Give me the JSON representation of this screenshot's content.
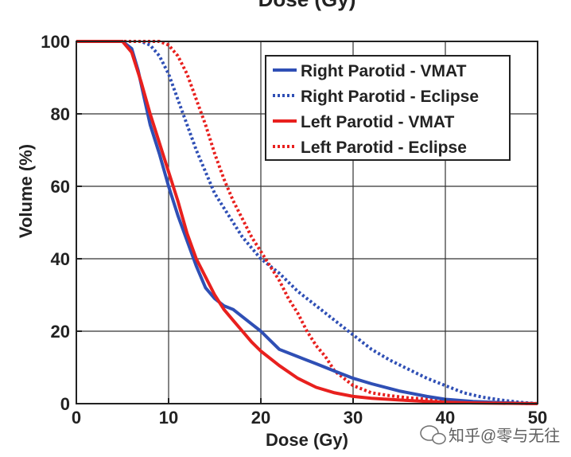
{
  "chart_data": {
    "type": "line",
    "title": "Dose (Gy)",
    "xlabel": "Dose (Gy)",
    "ylabel": "Volume (%)",
    "xlim": [
      0,
      50
    ],
    "ylim": [
      0,
      100
    ],
    "xticks": [
      "0",
      "10",
      "20",
      "30",
      "40",
      "50"
    ],
    "yticks": [
      "0",
      "20",
      "40",
      "60",
      "80",
      "100"
    ],
    "grid": true,
    "legend_position": "top-right",
    "series": [
      {
        "name": "Right Parotid - VMAT",
        "color": "#2f4fb5",
        "style": "solid",
        "x": [
          0,
          5,
          6,
          6.7,
          7.3,
          8,
          9,
          10,
          11,
          12,
          13,
          14,
          15,
          16,
          17,
          18,
          19,
          20,
          21,
          22,
          24,
          26,
          28,
          30,
          32,
          35,
          38,
          40,
          43,
          46,
          48,
          50
        ],
        "y": [
          100,
          100,
          98,
          92,
          85,
          77,
          69,
          60,
          52,
          45,
          38,
          32,
          29,
          27,
          26,
          24,
          22,
          20,
          17.5,
          15,
          13,
          11,
          9,
          7,
          5.5,
          3.5,
          2,
          1.2,
          0.6,
          0.3,
          0.1,
          0
        ]
      },
      {
        "name": "Right Parotid - Eclipse",
        "color": "#2f4fb5",
        "style": "dotted",
        "x": [
          0,
          7,
          8,
          9,
          10,
          11,
          12,
          13,
          14,
          15,
          16,
          17,
          18,
          19,
          20,
          21,
          22,
          24,
          26,
          28,
          30,
          32,
          34,
          36,
          38,
          40,
          42,
          44,
          46,
          48,
          50
        ],
        "y": [
          100,
          100,
          99,
          96,
          91,
          84,
          77,
          70,
          64,
          58,
          54,
          50,
          46,
          43,
          40,
          38,
          36,
          31,
          27,
          23,
          19,
          15,
          12,
          9.5,
          7,
          5,
          3,
          1.8,
          1,
          0.4,
          0
        ]
      },
      {
        "name": "Left Parotid - VMAT",
        "color": "#e8201e",
        "style": "solid",
        "x": [
          0,
          5,
          6,
          7,
          8,
          9,
          10,
          11,
          12,
          13,
          14,
          15,
          16,
          17,
          18,
          19,
          20,
          21,
          22,
          24,
          26,
          28,
          30,
          32,
          35,
          38,
          40,
          43,
          46,
          50
        ],
        "y": [
          100,
          100,
          97,
          89,
          80,
          72,
          64,
          56,
          47,
          40,
          35,
          30,
          26,
          23,
          20,
          17,
          14.5,
          12.5,
          10.5,
          7,
          4.5,
          3,
          2,
          1.5,
          1,
          0.6,
          0.4,
          0.2,
          0.1,
          0
        ]
      },
      {
        "name": "Left Parotid - Eclipse",
        "color": "#e8201e",
        "style": "dotted",
        "x": [
          0,
          9,
          10,
          11,
          12,
          13,
          14,
          15,
          16,
          17,
          18,
          19,
          20,
          21,
          22,
          23,
          24,
          25,
          26,
          27,
          28,
          29,
          30,
          31,
          32,
          34,
          36,
          38,
          40,
          43,
          46,
          50
        ],
        "y": [
          100,
          100,
          99,
          96,
          91,
          84,
          77,
          69,
          62,
          56,
          51,
          46,
          42,
          38,
          34,
          29,
          25,
          20,
          16,
          13,
          9,
          7,
          5,
          4,
          3,
          2.2,
          1.6,
          1.2,
          0.8,
          0.4,
          0.2,
          0
        ]
      }
    ]
  },
  "watermark": {
    "icon": "wechat-icon",
    "text": "知乎@零与无往"
  }
}
